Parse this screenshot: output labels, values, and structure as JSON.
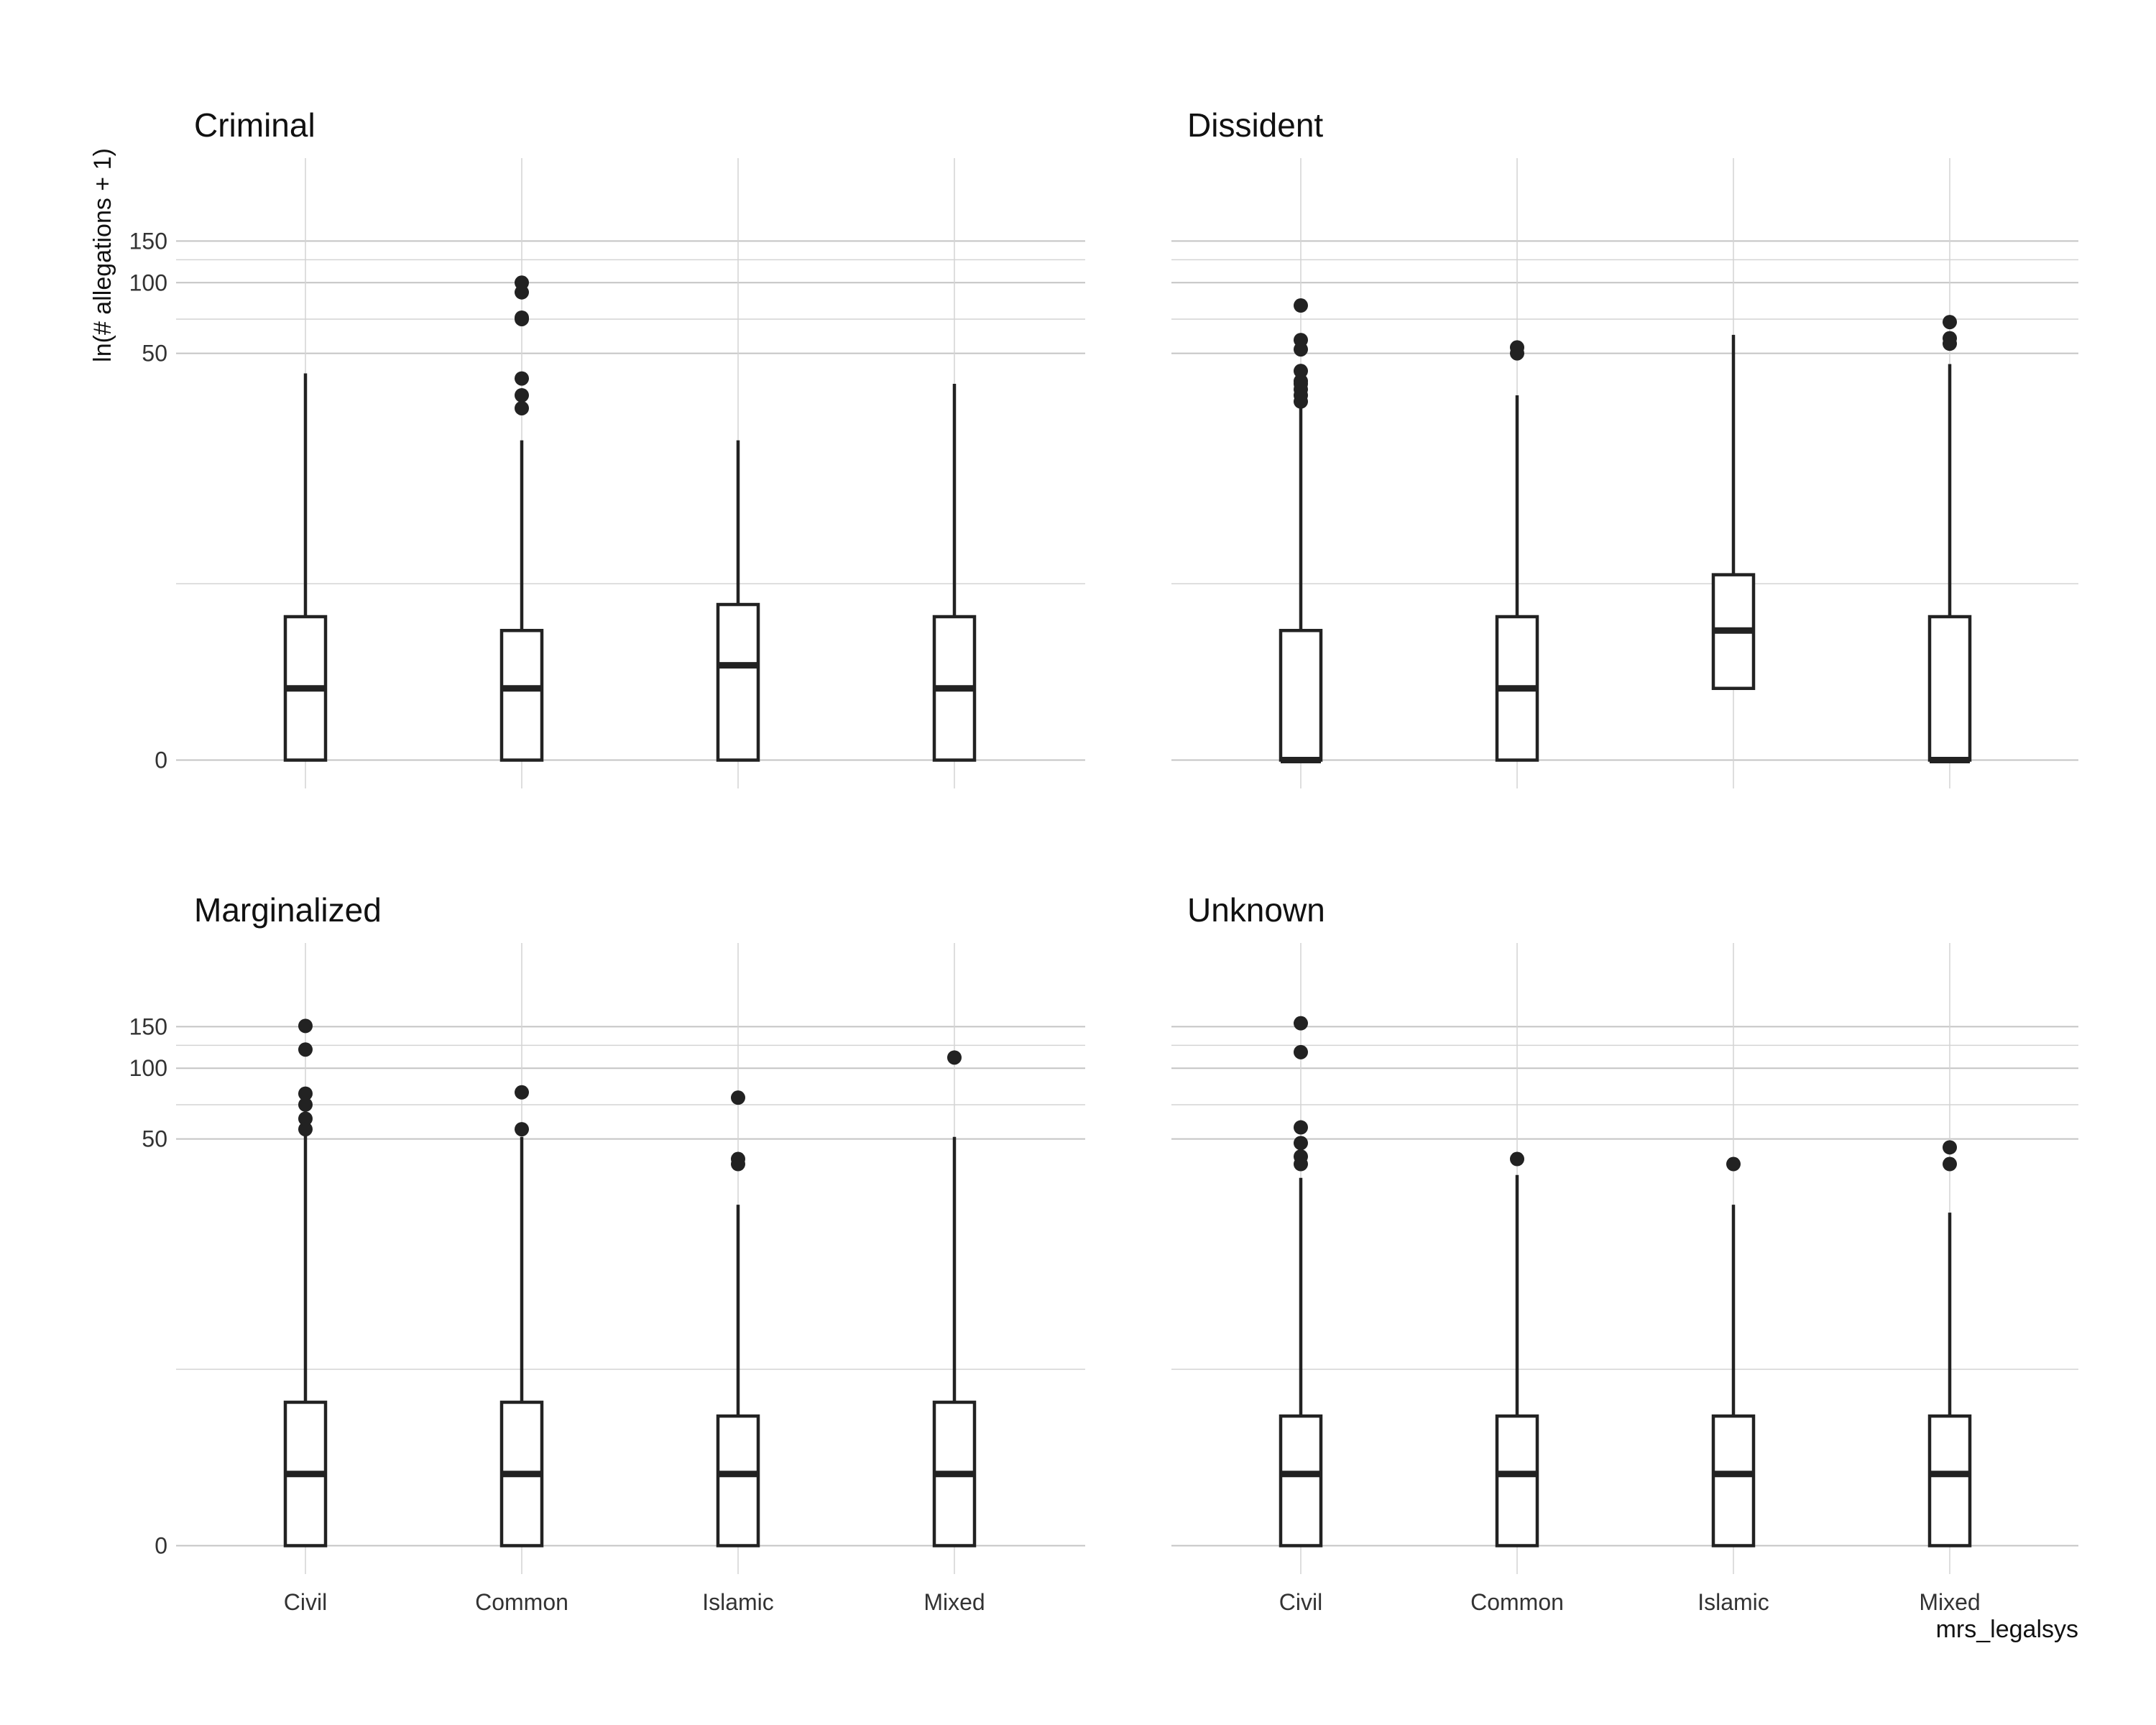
{
  "chart_data": {
    "type": "boxplot",
    "ylabel": "ln(# allegations + 1)",
    "xlabel": "mrs_legalsys",
    "categories": [
      "Civil",
      "Common",
      "Islamic",
      "Mixed"
    ],
    "y_scale": "log1p",
    "y_ticks": [
      0,
      50,
      100,
      150
    ],
    "ylim": [
      0,
      200
    ],
    "grid": true,
    "panels": [
      {
        "title": "Criminal",
        "boxes": [
          {
            "category": "Civil",
            "lower": 0,
            "q1": 0,
            "median": 1,
            "q3": 3,
            "upper": 41,
            "outliers": []
          },
          {
            "category": "Common",
            "lower": 0,
            "q1": 0,
            "median": 1,
            "q3": 2.5,
            "upper": 21,
            "outliers": [
              29,
              33,
              39,
              70,
              71,
              91,
              100
            ]
          },
          {
            "category": "Islamic",
            "lower": 0,
            "q1": 0,
            "median": 1.5,
            "q3": 3.5,
            "upper": 21,
            "outliers": []
          },
          {
            "category": "Mixed",
            "lower": 0,
            "q1": 0,
            "median": 1,
            "q3": 3,
            "upper": 37,
            "outliers": []
          }
        ]
      },
      {
        "title": "Dissident",
        "boxes": [
          {
            "category": "Civil",
            "lower": 0,
            "q1": 0,
            "median": 0,
            "q3": 2.5,
            "upper": 29,
            "outliers": [
              31,
              33,
              35,
              37,
              38,
              42,
              52,
              57,
              80
            ]
          },
          {
            "category": "Common",
            "lower": 0,
            "q1": 0,
            "median": 1,
            "q3": 3,
            "upper": 33,
            "outliers": [
              50,
              53
            ]
          },
          {
            "category": "Islamic",
            "lower": 1,
            "q1": 1,
            "median": 2.5,
            "q3": 5,
            "upper": 60,
            "outliers": []
          },
          {
            "category": "Mixed",
            "lower": 0,
            "q1": 0,
            "median": 0,
            "q3": 3,
            "upper": 45,
            "outliers": [
              55,
              58,
              68
            ]
          }
        ]
      },
      {
        "title": "Marginalized",
        "boxes": [
          {
            "category": "Civil",
            "lower": 0,
            "q1": 0,
            "median": 1,
            "q3": 3,
            "upper": 52,
            "outliers": [
              55,
              61,
              70,
              78,
              120,
              151
            ]
          },
          {
            "category": "Common",
            "lower": 0,
            "q1": 0,
            "median": 1,
            "q3": 3,
            "upper": 51,
            "outliers": [
              55,
              79
            ]
          },
          {
            "category": "Islamic",
            "lower": 0,
            "q1": 0,
            "median": 1,
            "q3": 2.5,
            "upper": 26,
            "outliers": [
              39,
              41,
              75
            ]
          },
          {
            "category": "Mixed",
            "lower": 0,
            "q1": 0,
            "median": 1,
            "q3": 3,
            "upper": 51,
            "outliers": [
              111
            ]
          }
        ]
      },
      {
        "title": "Unknown",
        "boxes": [
          {
            "category": "Civil",
            "lower": 0,
            "q1": 0,
            "median": 1,
            "q3": 2.5,
            "upper": 34,
            "outliers": [
              39,
              42,
              48,
              56,
              117,
              155
            ]
          },
          {
            "category": "Common",
            "lower": 0,
            "q1": 0,
            "median": 1,
            "q3": 2.5,
            "upper": 35,
            "outliers": [
              41
            ]
          },
          {
            "category": "Islamic",
            "lower": 0,
            "q1": 0,
            "median": 1,
            "q3": 2.5,
            "upper": 26,
            "outliers": [
              39
            ]
          },
          {
            "category": "Mixed",
            "lower": 0,
            "q1": 0,
            "median": 1,
            "q3": 2.5,
            "upper": 24,
            "outliers": [
              39,
              46
            ]
          }
        ]
      }
    ]
  }
}
